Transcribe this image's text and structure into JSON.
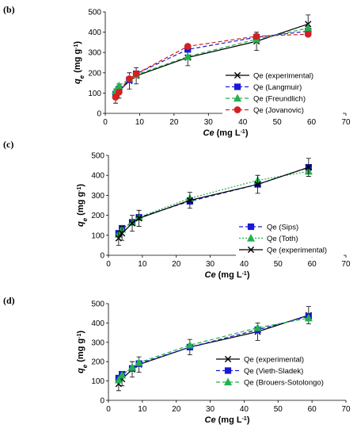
{
  "chart_data": [
    {
      "type": "line",
      "panel_label": "(b)",
      "xlabel": "Ce (mg L⁻¹)",
      "ylabel": "qe (mg g⁻¹)",
      "xlim": [
        0,
        70
      ],
      "ylim": [
        0,
        500
      ],
      "xticks": [
        0,
        10,
        20,
        30,
        40,
        50,
        60,
        70
      ],
      "yticks": [
        0,
        100,
        200,
        300,
        400,
        500
      ],
      "grid": false,
      "legend_position": "bottom-right",
      "series": [
        {
          "name": "Qe (experimental)",
          "color": "#000000",
          "marker": "x",
          "dash": "solid",
          "x": [
            3,
            4,
            7,
            9,
            24,
            44,
            59
          ],
          "y": [
            85,
            110,
            160,
            185,
            275,
            355,
            440
          ],
          "err": [
            35,
            35,
            40,
            40,
            40,
            45,
            45
          ]
        },
        {
          "name": "Qe (Langmuir)",
          "color": "#1a1ad6",
          "marker": "square",
          "dash": "dash",
          "x": [
            3,
            4,
            7,
            9,
            24,
            44,
            59
          ],
          "y": [
            95,
            120,
            165,
            195,
            315,
            375,
            405
          ],
          "err": [
            0,
            0,
            0,
            0,
            0,
            0,
            0
          ]
        },
        {
          "name": "Qe (Freundlich)",
          "color": "#22b24c",
          "marker": "triangle",
          "dash": "dash",
          "x": [
            3,
            4,
            7,
            9,
            24,
            44,
            59
          ],
          "y": [
            110,
            135,
            170,
            190,
            280,
            365,
            420
          ],
          "err": [
            0,
            0,
            0,
            0,
            0,
            0,
            0
          ]
        },
        {
          "name": "Qe (Jovanovic)",
          "color": "#d42020",
          "marker": "circle",
          "dash": "dash",
          "x": [
            3,
            4,
            7,
            9,
            24,
            44,
            59
          ],
          "y": [
            80,
            105,
            170,
            195,
            330,
            380,
            390
          ],
          "err": [
            0,
            0,
            0,
            0,
            0,
            0,
            0
          ]
        }
      ]
    },
    {
      "type": "line",
      "panel_label": "(c)",
      "xlabel": "Ce (mg L⁻¹)",
      "ylabel": "qe (mg g⁻¹)",
      "xlim": [
        0,
        70
      ],
      "ylim": [
        0,
        500
      ],
      "xticks": [
        0,
        10,
        20,
        30,
        40,
        50,
        60,
        70
      ],
      "yticks": [
        0,
        100,
        200,
        300,
        400,
        500
      ],
      "grid": false,
      "legend_position": "bottom-right",
      "series": [
        {
          "name": "Qe (Sips)",
          "color": "#1a1ad6",
          "marker": "square",
          "dash": "dash",
          "x": [
            3,
            4,
            7,
            9,
            24,
            44,
            59
          ],
          "y": [
            110,
            135,
            165,
            190,
            270,
            355,
            440
          ],
          "err": [
            0,
            0,
            0,
            0,
            0,
            0,
            0
          ]
        },
        {
          "name": "Qe (Toth)",
          "color": "#22b24c",
          "marker": "triangle",
          "dash": "dot",
          "x": [
            3,
            4,
            7,
            9,
            24,
            44,
            59
          ],
          "y": [
            105,
            130,
            165,
            190,
            285,
            375,
            420
          ],
          "err": [
            0,
            0,
            0,
            0,
            0,
            0,
            0
          ]
        },
        {
          "name": "Qe (experimental)",
          "color": "#000000",
          "marker": "x",
          "dash": "solid",
          "x": [
            3,
            4,
            7,
            9,
            24,
            44,
            59
          ],
          "y": [
            85,
            110,
            160,
            185,
            275,
            355,
            440
          ],
          "err": [
            35,
            35,
            40,
            40,
            40,
            45,
            45
          ]
        }
      ]
    },
    {
      "type": "line",
      "panel_label": "(d)",
      "xlabel": "Ce (mg L⁻¹)",
      "ylabel": "qe (mg g⁻¹)",
      "xlim": [
        0,
        70
      ],
      "ylim": [
        0,
        500
      ],
      "xticks": [
        0,
        10,
        20,
        30,
        40,
        50,
        60,
        70
      ],
      "yticks": [
        0,
        100,
        200,
        300,
        400,
        500
      ],
      "grid": false,
      "legend_position": "bottom-right",
      "series": [
        {
          "name": "Qe (experimental)",
          "color": "#000000",
          "marker": "x",
          "dash": "solid",
          "x": [
            3,
            4,
            7,
            9,
            24,
            44,
            59
          ],
          "y": [
            85,
            110,
            160,
            185,
            275,
            355,
            440
          ],
          "err": [
            35,
            35,
            40,
            40,
            40,
            45,
            45
          ]
        },
        {
          "name": "Qe (Vieth-Sladek)",
          "color": "#1a1ad6",
          "marker": "square",
          "dash": "dash",
          "x": [
            3,
            4,
            7,
            9,
            24,
            44,
            59
          ],
          "y": [
            115,
            135,
            165,
            190,
            275,
            365,
            435
          ],
          "err": [
            0,
            0,
            0,
            0,
            0,
            0,
            0
          ]
        },
        {
          "name": "Qe (Brouers-Sotolongo)",
          "color": "#22b24c",
          "marker": "triangle",
          "dash": "dash",
          "x": [
            3,
            4,
            7,
            9,
            24,
            44,
            59
          ],
          "y": [
            105,
            130,
            170,
            195,
            285,
            375,
            425
          ],
          "err": [
            0,
            0,
            0,
            0,
            0,
            0,
            0
          ]
        }
      ]
    }
  ]
}
